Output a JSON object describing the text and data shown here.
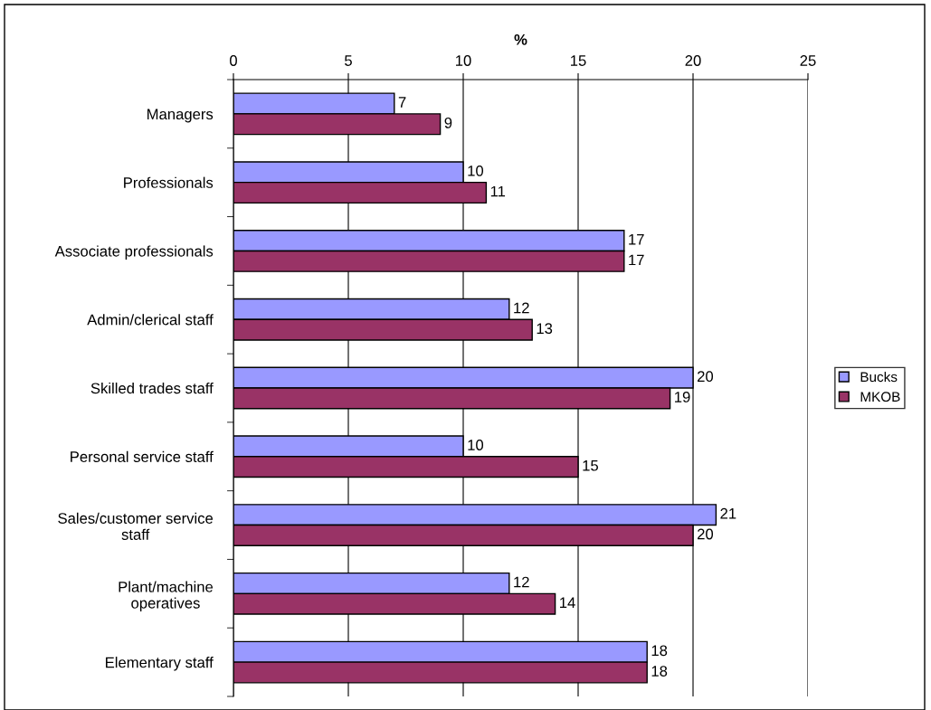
{
  "chart_data": {
    "type": "bar",
    "orientation": "horizontal",
    "xlabel": "%",
    "categories": [
      "Managers",
      "Professionals",
      "Associate professionals",
      "Admin/clerical staff",
      "Skilled trades staff",
      "Personal service staff",
      "Sales/customer service\nstaff",
      "Plant/machine\noperatives",
      "Elementary staff"
    ],
    "series": [
      {
        "name": "Bucks",
        "color": "#9999ff",
        "values": [
          7,
          10,
          17,
          12,
          20,
          10,
          21,
          12,
          18
        ]
      },
      {
        "name": "MKOB",
        "color": "#993366",
        "values": [
          9,
          11,
          17,
          13,
          19,
          15,
          20,
          14,
          18
        ]
      }
    ],
    "xlim": [
      0,
      25
    ],
    "xticks": [
      0,
      5,
      10,
      15,
      20,
      25
    ],
    "grid": "x",
    "legend": "right",
    "data_labels": true
  }
}
